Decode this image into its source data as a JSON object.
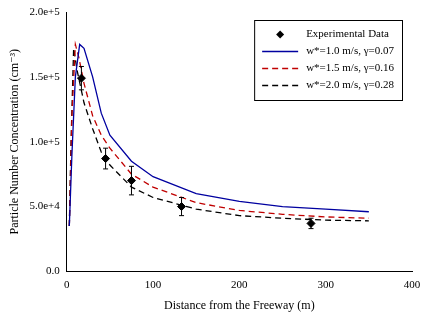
{
  "chart_data": {
    "type": "line",
    "x_label": "Distance from the Freeway (m)",
    "y_label": "Particle Number Concentration (cm⁻³)",
    "xlim": [
      0,
      400
    ],
    "xticks": [
      0,
      100,
      200,
      300,
      400
    ],
    "ylim": [
      0,
      200000
    ],
    "yticks": [
      {
        "value": 0,
        "label": "0.0"
      },
      {
        "value": 50000,
        "label": "5.0e+4"
      },
      {
        "value": 100000,
        "label": "1.0e+5"
      },
      {
        "value": 150000,
        "label": "1.5e+5"
      },
      {
        "value": 200000,
        "label": "2.0e+5"
      }
    ],
    "grid": false,
    "legend": "upper right",
    "series": [
      {
        "name": "Experimental Data",
        "type": "scatter",
        "marker": "diamond",
        "color": "#000000",
        "x": [
          17,
          45,
          75,
          133,
          283
        ],
        "values": [
          149000,
          87000,
          70000,
          50000,
          37000
        ],
        "errors": [
          9000,
          8000,
          11000,
          7000,
          4000
        ]
      },
      {
        "name": "w*=1.0 m/s, γ=0.07",
        "type": "line",
        "line_style": "solid",
        "color": "#0000a0",
        "x": [
          3,
          6,
          10,
          15,
          20,
          30,
          40,
          50,
          75,
          100,
          150,
          200,
          250,
          300,
          350
        ],
        "values": [
          35000,
          90000,
          150000,
          175000,
          172000,
          150000,
          122000,
          105000,
          85000,
          73000,
          60000,
          54000,
          50000,
          48000,
          46000
        ]
      },
      {
        "name": "w*=1.5 m/s, γ=0.16",
        "type": "line",
        "line_style": "dashed",
        "color": "#c00000",
        "x": [
          3,
          6,
          10,
          14,
          20,
          30,
          40,
          50,
          75,
          100,
          150,
          200,
          250,
          300,
          350
        ],
        "values": [
          35000,
          120000,
          175000,
          165000,
          145000,
          120000,
          105000,
          95000,
          75000,
          65000,
          53000,
          47000,
          44000,
          42000,
          41000
        ]
      },
      {
        "name": "w*=2.0 m/s, γ=0.28",
        "type": "line",
        "line_style": "dashed",
        "color": "#000000",
        "x": [
          3,
          5,
          8,
          12,
          20,
          30,
          40,
          50,
          75,
          100,
          150,
          200,
          250,
          300,
          350
        ],
        "values": [
          35000,
          100000,
          172000,
          155000,
          130000,
          110000,
          92000,
          82000,
          65000,
          57000,
          48000,
          43000,
          41000,
          39500,
          39000
        ]
      }
    ]
  }
}
